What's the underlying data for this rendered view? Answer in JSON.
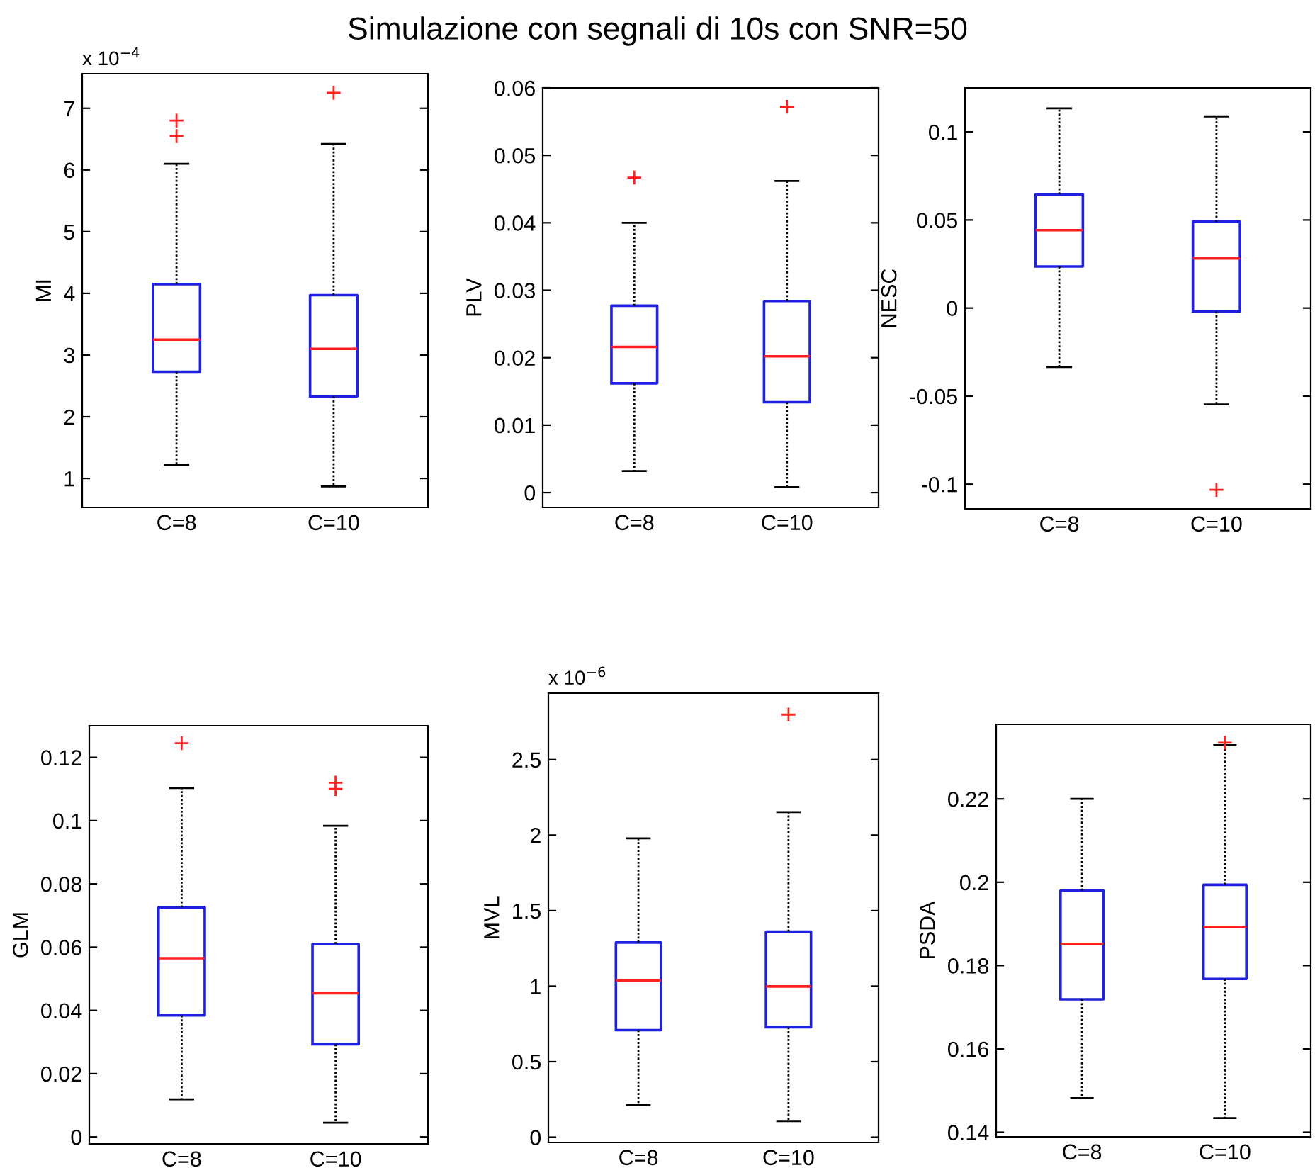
{
  "chart_data": [
    {
      "type": "box",
      "title": "Simulazione con segnali di 10s con SNR=50",
      "ylabel": "MI",
      "annotations": [
        "x 10$^{−4}$"
      ],
      "categories": [
        "C=8",
        "C=10"
      ],
      "ylim": [
        0.53,
        7.56
      ],
      "yticks": [
        1,
        2,
        3,
        4,
        5,
        6,
        7
      ],
      "boxes": [
        {
          "low": 1.22,
          "q1": 2.73,
          "median": 3.25,
          "q3": 4.15,
          "high": 6.1,
          "outliers": [
            6.8,
            6.55
          ]
        },
        {
          "low": 0.87,
          "q1": 2.33,
          "median": 3.1,
          "q3": 3.97,
          "high": 6.42,
          "outliers": [
            7.25
          ]
        }
      ]
    },
    {
      "type": "box",
      "ylabel": "PLV",
      "categories": [
        "C=8",
        "C=10"
      ],
      "ylim": [
        -0.0022,
        0.06
      ],
      "yticks": [
        0,
        0.01,
        0.02,
        0.03,
        0.04,
        0.05,
        0.06
      ],
      "boxes": [
        {
          "low": 0.0032,
          "q1": 0.0162,
          "median": 0.0216,
          "q3": 0.0277,
          "high": 0.04,
          "outliers": [
            0.0467
          ]
        },
        {
          "low": 0.0008,
          "q1": 0.0134,
          "median": 0.0202,
          "q3": 0.0284,
          "high": 0.0462,
          "outliers": [
            0.0572
          ]
        }
      ]
    },
    {
      "type": "box",
      "ylabel": "NESC",
      "categories": [
        "C=8",
        "C=10"
      ],
      "ylim": [
        -0.114,
        0.125
      ],
      "yticks": [
        -0.1,
        -0.05,
        0,
        0.05,
        0.1
      ],
      "boxes": [
        {
          "low": -0.0335,
          "q1": 0.0236,
          "median": 0.0442,
          "q3": 0.0646,
          "high": 0.1134
        },
        {
          "low": -0.0547,
          "q1": -0.0019,
          "median": 0.0282,
          "q3": 0.049,
          "high": 0.1088,
          "outliers": [
            -0.1032
          ]
        }
      ]
    },
    {
      "type": "box",
      "ylabel": "GLM",
      "categories": [
        "C=8",
        "C=10"
      ],
      "ylim": [
        -0.0022,
        0.13
      ],
      "yticks": [
        0,
        0.02,
        0.04,
        0.06,
        0.08,
        0.1,
        0.12
      ],
      "boxes": [
        {
          "low": 0.0119,
          "q1": 0.0384,
          "median": 0.0565,
          "q3": 0.0726,
          "high": 0.1103,
          "outliers": [
            0.1245
          ]
        },
        {
          "low": 0.0045,
          "q1": 0.0293,
          "median": 0.0454,
          "q3": 0.061,
          "high": 0.0984,
          "outliers": [
            0.112,
            0.11
          ]
        }
      ]
    },
    {
      "type": "box",
      "ylabel": "MVL",
      "annotations": [
        "x 10$^{−6}$"
      ],
      "categories": [
        "C=8",
        "C=10"
      ],
      "ylim": [
        -0.035,
        2.94
      ],
      "yticks": [
        0,
        0.5,
        1,
        1.5,
        2,
        2.5
      ],
      "boxes": [
        {
          "low": 0.213,
          "q1": 0.709,
          "median": 1.038,
          "q3": 1.289,
          "high": 1.979
        },
        {
          "low": 0.107,
          "q1": 0.728,
          "median": 0.998,
          "q3": 1.361,
          "high": 2.152,
          "outliers": [
            2.798
          ]
        }
      ]
    },
    {
      "type": "box",
      "ylabel": "PSDA",
      "categories": [
        "C=8",
        "C=10"
      ],
      "ylim": [
        0.1389,
        0.2379
      ],
      "yticks": [
        0.14,
        0.16,
        0.18,
        0.2,
        0.22
      ],
      "boxes": [
        {
          "low": 0.1482,
          "q1": 0.1719,
          "median": 0.1852,
          "q3": 0.198,
          "high": 0.22
        },
        {
          "low": 0.1434,
          "q1": 0.1768,
          "median": 0.1893,
          "q3": 0.1994,
          "high": 0.2329,
          "outliers": [
            0.2335
          ]
        }
      ]
    }
  ]
}
